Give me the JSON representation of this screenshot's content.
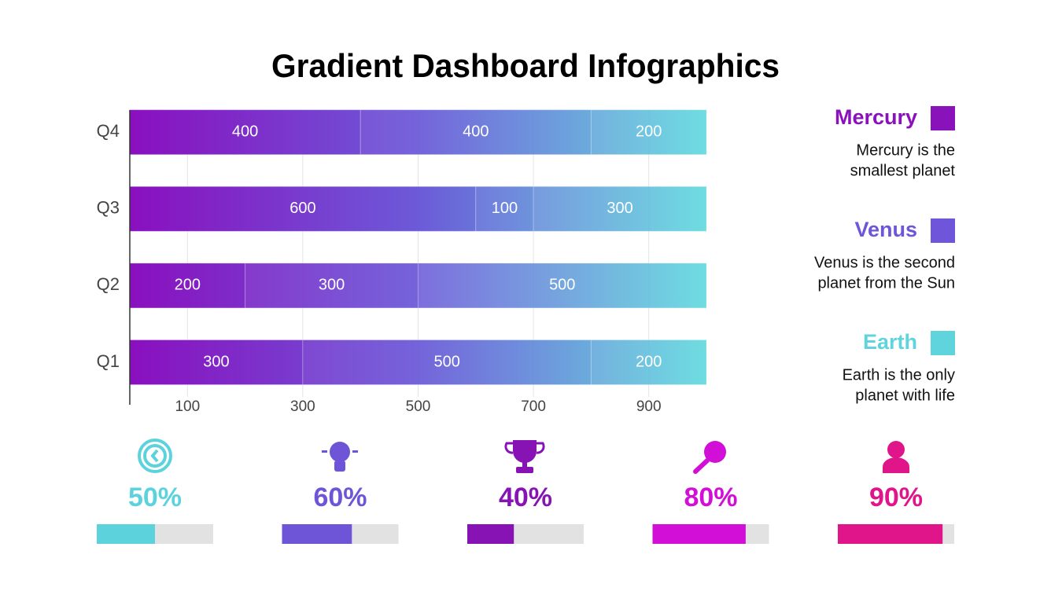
{
  "chart_data": {
    "type": "stacked-hbar",
    "title": "Gradient Dashboard Infographics",
    "categories": [
      "Q1",
      "Q2",
      "Q3",
      "Q4"
    ],
    "series": [
      {
        "name": "Mercury",
        "color": "#8a12bb",
        "description": [
          "Mercury is the",
          "smallest planet"
        ],
        "values": [
          300,
          200,
          600,
          400
        ]
      },
      {
        "name": "Venus",
        "color": "#6f55d9",
        "description": [
          "Venus is the second",
          "planet from the Sun"
        ],
        "values": [
          500,
          300,
          100,
          400
        ]
      },
      {
        "name": "Earth",
        "color": "#5fd4dc",
        "description": [
          "Earth is the only",
          "planet with life"
        ],
        "values": [
          200,
          500,
          300,
          200
        ]
      }
    ],
    "xlim": [
      0,
      1000
    ],
    "xticks": [
      100,
      300,
      500,
      700,
      900
    ],
    "grid": true
  },
  "kpis": {
    "xlim": [
      0,
      100
    ],
    "values": [
      50,
      60,
      40,
      80,
      90
    ],
    "value_labels": [
      "50%",
      "60%",
      "40%",
      "80%",
      "90%"
    ],
    "colors": [
      "#5cd3dc",
      "#6e55d8",
      "#8713b5",
      "#d10fd6",
      "#e0158a"
    ]
  }
}
